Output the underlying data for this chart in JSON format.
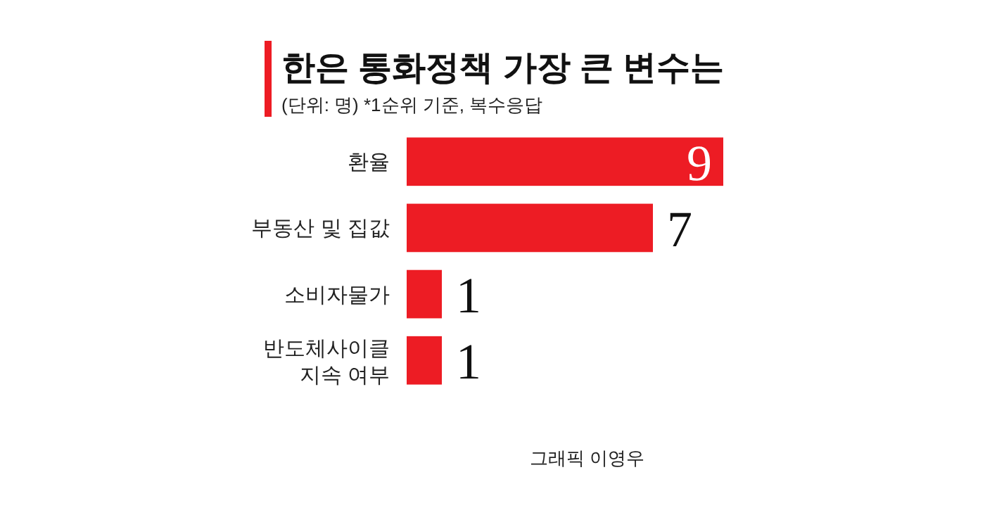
{
  "chart_data": {
    "type": "bar",
    "orientation": "horizontal",
    "title": "한은 통화정책 가장 큰 변수는",
    "subtitle": "(단위: 명) *1순위 기준, 복수응답",
    "categories": [
      "환율",
      "부동산 및 집값",
      "소비자물가",
      "반도체사이클\n지속 여부"
    ],
    "values": [
      9,
      7,
      1,
      1
    ],
    "color": "#ed1c24",
    "data_labels": true,
    "annotations": [
      "그래픽 이영우"
    ]
  }
}
